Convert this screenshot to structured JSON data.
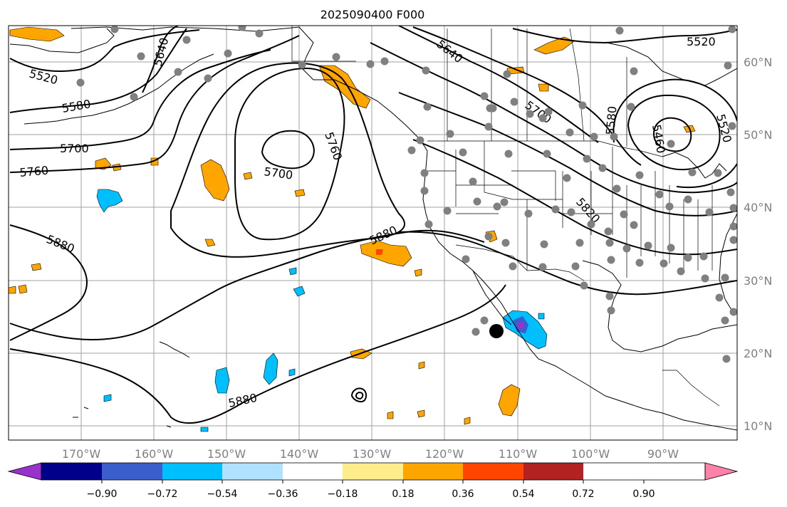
{
  "title": "2025090400 F000",
  "map": {
    "lon_labels": [
      "170°W",
      "160°W",
      "150°W",
      "140°W",
      "130°W",
      "120°W",
      "110°W",
      "100°W",
      "90°W"
    ],
    "lat_labels": [
      "60°N",
      "50°N",
      "40°N",
      "30°N",
      "20°N",
      "10°N"
    ],
    "contour_labels": [
      "5520",
      "5580",
      "5640",
      "5700",
      "5760",
      "5820",
      "5880",
      "5460"
    ]
  },
  "colorbar": {
    "colors": [
      "#9932cc",
      "#00008b",
      "#3a5fcd",
      "#00bfff",
      "#b0e2ff",
      "#ffffff",
      "#ffec8b",
      "#ffa500",
      "#ff4500",
      "#b22222",
      "#ff82ab"
    ],
    "tick_labels": [
      "−0.90",
      "−0.72",
      "−0.54",
      "−0.36",
      "−0.18",
      "0.18",
      "0.36",
      "0.54",
      "0.72",
      "0.90"
    ]
  }
}
